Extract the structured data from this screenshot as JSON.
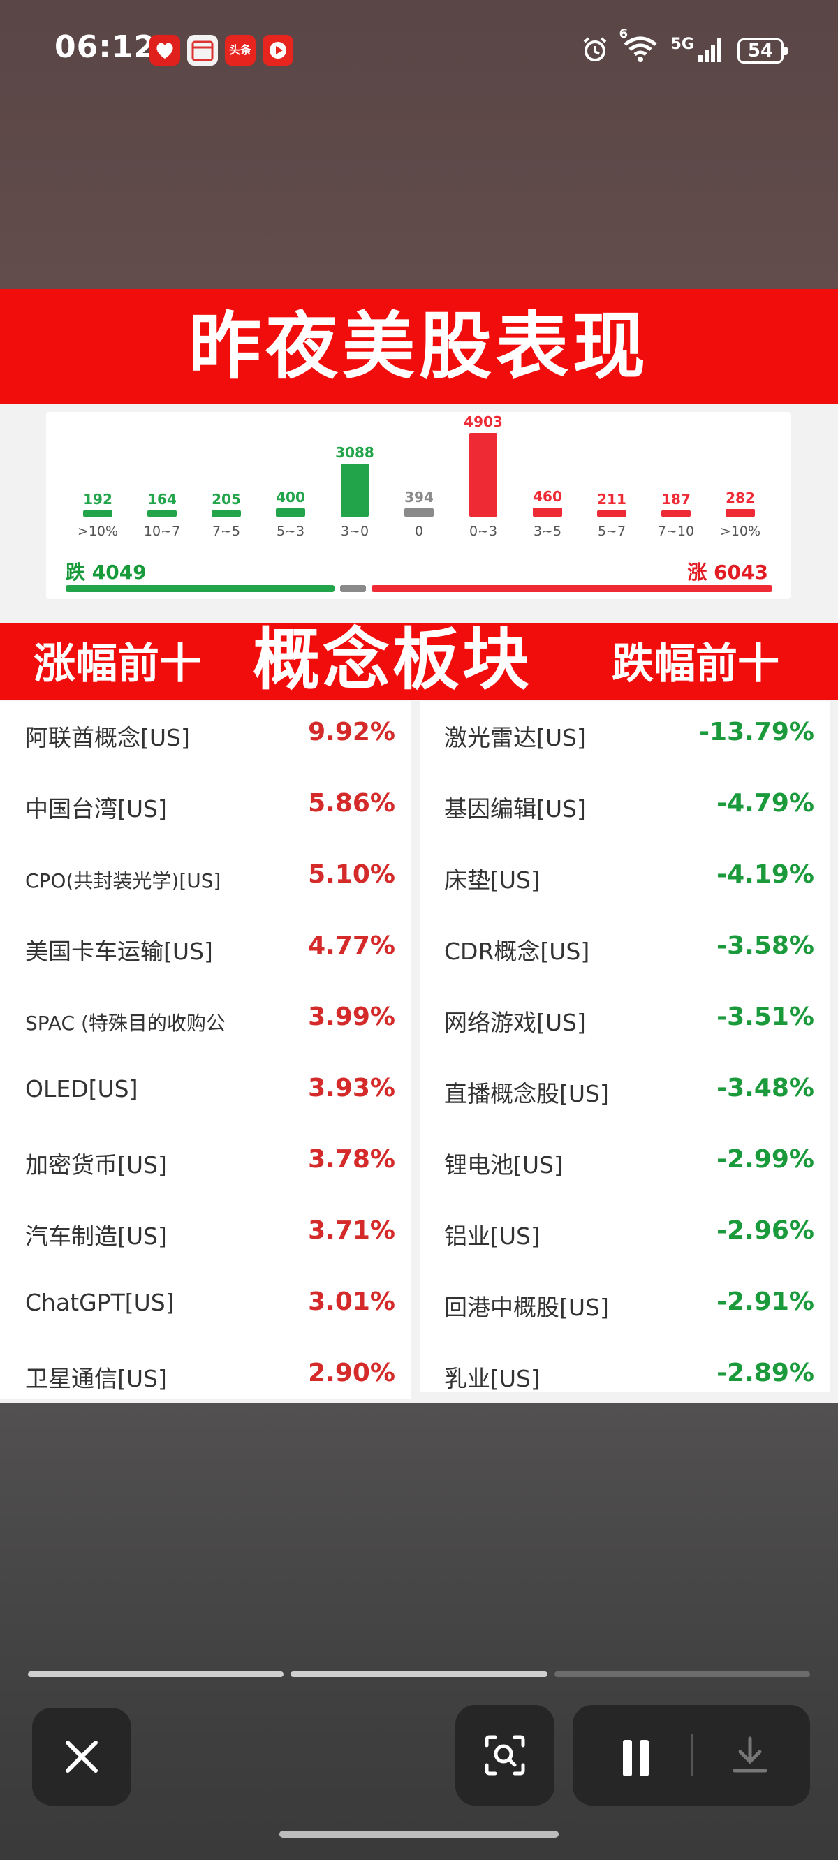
{
  "status_bar": {
    "time": "06:12",
    "network": "5G",
    "wifi_badge": "6",
    "battery": "54",
    "app_icons": [
      "pinduoduo-icon",
      "calendar-icon",
      "toutiao-icon",
      "video-icon"
    ],
    "toutiao_label": "头条"
  },
  "card": {
    "title": "昨夜美股表现",
    "distribution": {
      "buckets": [
        {
          "label": ">10%",
          "count": "192",
          "color": "#21a44a"
        },
        {
          "label": "10~7",
          "count": "164",
          "color": "#21a44a"
        },
        {
          "label": "7~5",
          "count": "205",
          "color": "#21a44a"
        },
        {
          "label": "5~3",
          "count": "400",
          "color": "#21a44a"
        },
        {
          "label": "3~0",
          "count": "3088",
          "color": "#21a44a"
        },
        {
          "label": "0",
          "count": "394",
          "color": "#8a8a8a"
        },
        {
          "label": "0~3",
          "count": "4903",
          "color": "#ee2a35"
        },
        {
          "label": "3~5",
          "count": "460",
          "color": "#ee2a35"
        },
        {
          "label": "5~7",
          "count": "211",
          "color": "#ee2a35"
        },
        {
          "label": "7~10",
          "count": "187",
          "color": "#ee2a35"
        },
        {
          "label": ">10%",
          "count": "282",
          "color": "#ee2a35"
        }
      ],
      "fall_text": "跌 4049",
      "rise_text": "涨 6043",
      "fall_count": 4049,
      "flat_count": 394,
      "rise_count": 6043
    },
    "sector_header": {
      "left": "涨幅前十",
      "center": "概念板块",
      "right": "跌幅前十"
    },
    "top_gainers": [
      {
        "name": "阿联酋概念[US]",
        "pct": "9.92%"
      },
      {
        "name": "中国台湾[US]",
        "pct": "5.86%"
      },
      {
        "name": "CPO(共封装光学)[US]",
        "pct": "5.10%"
      },
      {
        "name": "美国卡车运输[US]",
        "pct": "4.77%"
      },
      {
        "name": "SPAC (特殊目的收购公",
        "pct": "3.99%"
      },
      {
        "name": "OLED[US]",
        "pct": "3.93%"
      },
      {
        "name": "加密货币[US]",
        "pct": "3.78%"
      },
      {
        "name": "汽车制造[US]",
        "pct": "3.71%"
      },
      {
        "name": "ChatGPT[US]",
        "pct": "3.01%"
      },
      {
        "name": "卫星通信[US]",
        "pct": "2.90%"
      }
    ],
    "top_losers": [
      {
        "name": "激光雷达[US]",
        "pct": "-13.79%"
      },
      {
        "name": "基因编辑[US]",
        "pct": "-4.79%"
      },
      {
        "name": "床垫[US]",
        "pct": "-4.19%"
      },
      {
        "name": "CDR概念[US]",
        "pct": "-3.58%"
      },
      {
        "name": "网络游戏[US]",
        "pct": "-3.51%"
      },
      {
        "name": "直播概念股[US]",
        "pct": "-3.48%"
      },
      {
        "name": "锂电池[US]",
        "pct": "-2.99%"
      },
      {
        "name": "铝业[US]",
        "pct": "-2.96%"
      },
      {
        "name": "回港中概股[US]",
        "pct": "-2.91%"
      },
      {
        "name": "乳业[US]",
        "pct": "-2.89%"
      }
    ]
  },
  "viewer_controls": {
    "close_icon": "close-icon",
    "scan_icon": "scan-search-icon",
    "pause_icon": "pause-icon",
    "download_icon": "download-icon",
    "progress_segments": 3,
    "progress_current": 2
  }
}
